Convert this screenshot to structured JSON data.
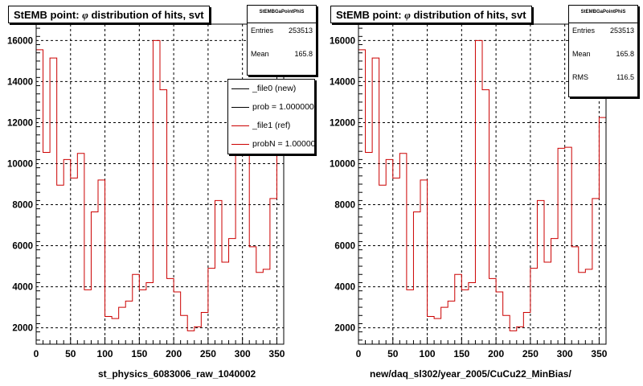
{
  "colors": {
    "hist_line": "#cc0000",
    "grid": "#000000",
    "ref_line": "#cc0000",
    "new_line": "#000000"
  },
  "panels": [
    {
      "title_prefix": "StEMB point:  ",
      "title_symbol": "φ",
      "title_suffix": " distribution of hits, svt",
      "xlabel": "st_physics_6083006_raw_1040002",
      "stats": {
        "name": "StEMBGaPointPhiS",
        "rows": [
          {
            "label": "Entries",
            "value": "253513"
          },
          {
            "label": "Mean",
            "value": "165.8"
          }
        ]
      },
      "legend": [
        {
          "label": "_file0 (new)",
          "color": "#000000"
        },
        {
          "label": "prob = 1.000000",
          "color": "#000000"
        },
        {
          "label": "_file1 (ref)",
          "color": "#cc0000"
        },
        {
          "label": "probN = 1.000000",
          "color": "#cc0000"
        }
      ]
    },
    {
      "title_prefix": "StEMB point:  ",
      "title_symbol": "φ",
      "title_suffix": " distribution of hits, svt",
      "xlabel": "new/daq_sl302/year_2005/CuCu22_MinBias/",
      "stats": {
        "name": "StEMBGaPointPhiS",
        "rows": [
          {
            "label": "Entries",
            "value": "253513"
          },
          {
            "label": "Mean",
            "value": "165.8"
          },
          {
            "label": "RMS",
            "value": "116.5"
          }
        ]
      }
    }
  ],
  "chart_data": [
    {
      "type": "histogram",
      "title": "StEMB point:  φ distribution of hits, svt",
      "xlabel": "st_physics_6083006_raw_1040002",
      "xlim": [
        0,
        360
      ],
      "ylim": [
        1200,
        16800
      ],
      "xticks": [
        0,
        50,
        100,
        150,
        200,
        250,
        300,
        350
      ],
      "yticks": [
        2000,
        4000,
        6000,
        8000,
        10000,
        12000,
        14000,
        16000
      ],
      "grid": true,
      "bin_width": 10,
      "series": [
        {
          "name": "_file1 (ref)",
          "values": [
            15550,
            10550,
            15150,
            8950,
            10200,
            9300,
            10500,
            3850,
            7650,
            9200,
            2550,
            2450,
            3000,
            3300,
            4600,
            3850,
            4200,
            16000,
            13600,
            4400,
            3750,
            2600,
            1850,
            2050,
            2750,
            4900,
            8200,
            5200,
            6350,
            10750,
            10800,
            5950,
            4700,
            4850,
            8300,
            12250
          ]
        }
      ]
    },
    {
      "type": "histogram",
      "title": "StEMB point:  φ distribution of hits, svt",
      "xlabel": "new/daq_sl302/year_2005/CuCu22_MinBias/",
      "xlim": [
        0,
        360
      ],
      "ylim": [
        1200,
        16800
      ],
      "xticks": [
        0,
        50,
        100,
        150,
        200,
        250,
        300,
        350
      ],
      "yticks": [
        2000,
        4000,
        6000,
        8000,
        10000,
        12000,
        14000,
        16000
      ],
      "grid": true,
      "bin_width": 10,
      "series": [
        {
          "values": [
            15550,
            10550,
            15150,
            8950,
            10200,
            9300,
            10500,
            3850,
            7650,
            9200,
            2550,
            2450,
            3000,
            3300,
            4600,
            3850,
            4200,
            16000,
            13600,
            4400,
            3750,
            2600,
            1850,
            2050,
            2750,
            4900,
            8200,
            5200,
            6350,
            10750,
            10800,
            5950,
            4700,
            4850,
            8300,
            12250
          ]
        }
      ]
    }
  ]
}
